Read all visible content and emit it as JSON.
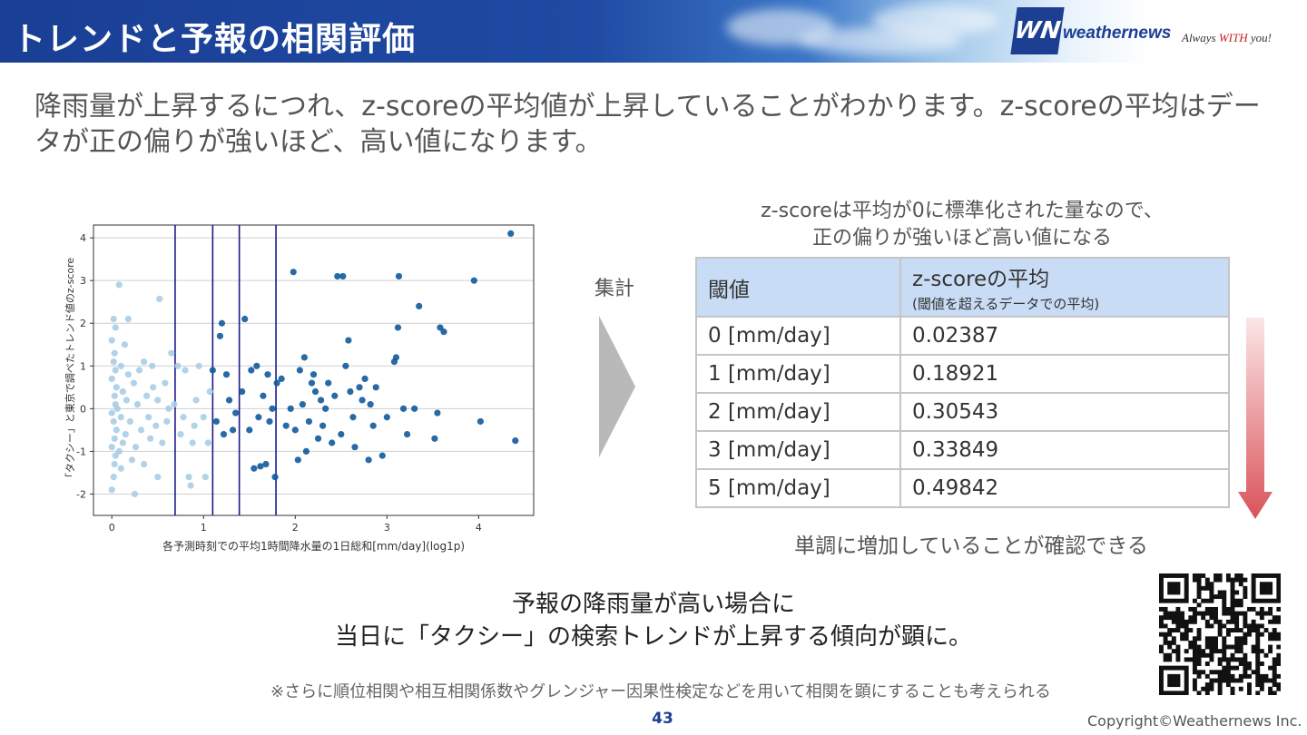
{
  "header": {
    "title": "トレンドと予報の相関評価",
    "logo_mark": "WN",
    "logo_text": "weathernews",
    "slogan_prefix": "Always ",
    "slogan_highlight": "WITH",
    "slogan_suffix": " you!"
  },
  "intro_text": "降雨量が上昇するにつれ、z-scoreの平均値が上昇していることがわかります。z-scoreの平均はデータが正の偏りが強いほど、高い値になります。",
  "summary_label": "集計",
  "table_note_line1": "z-scoreは平均が0に標準化された量なので、",
  "table_note_line2": "正の偏りが強いほど高い値になる",
  "table": {
    "header_threshold": "閾値",
    "header_mean": "z-scoreの平均",
    "header_mean_sub": "(閾値を超えるデータでの平均)",
    "rows": [
      {
        "threshold": "0 [mm/day]",
        "value": "0.02387"
      },
      {
        "threshold": "1 [mm/day]",
        "value": "0.18921"
      },
      {
        "threshold": "2 [mm/day]",
        "value": "0.30543"
      },
      {
        "threshold": "3 [mm/day]",
        "value": "0.33849"
      },
      {
        "threshold": "5 [mm/day]",
        "value": "0.49842"
      }
    ]
  },
  "conclusion": "単調に増加していることが確認できる",
  "key_message_line1": "予報の降雨量が高い場合に",
  "key_message_line2": "当日に「タクシー」の検索トレンドが上昇する傾向が顕に。",
  "footnote": "※さらに順位相関や相互相関係数やグレンジャー因果性検定などを用いて相関を顕にすることも考えられる",
  "page_number": "43",
  "copyright": "Copyright©Weathernews Inc.",
  "colors": {
    "header_blue": "#1c3f92",
    "light_point": "#a9cde6",
    "dark_point": "#0f5a9c",
    "threshold_line": "#1a1a8c",
    "table_header": "#c9dcf5"
  },
  "chart_data": {
    "type": "scatter",
    "xlabel": "各予測時刻での平均1時間降水量の1日総和[mm/day](log1p)",
    "ylabel": "「タクシー」と東京で調べたトレンド値のz-score",
    "xlim": [
      -0.2,
      4.6
    ],
    "ylim": [
      -2.5,
      4.3
    ],
    "x_ticks": [
      "0",
      "1",
      "2",
      "3",
      "4"
    ],
    "y_ticks": [
      "-2",
      "-1",
      "0",
      "1",
      "2",
      "3",
      "4"
    ],
    "grid": true,
    "threshold_lines": [
      0.69,
      1.1,
      1.39,
      1.79
    ],
    "series": [
      {
        "color": "light",
        "points": [
          [
            0.0,
            -1.9
          ],
          [
            0.02,
            -1.6
          ],
          [
            0.03,
            -1.3
          ],
          [
            0.04,
            -1.1
          ],
          [
            0.0,
            -0.9
          ],
          [
            0.03,
            -0.7
          ],
          [
            0.05,
            -0.5
          ],
          [
            0.02,
            -0.3
          ],
          [
            0.0,
            -0.1
          ],
          [
            0.04,
            0.1
          ],
          [
            0.03,
            0.3
          ],
          [
            0.05,
            0.5
          ],
          [
            0.0,
            0.7
          ],
          [
            0.04,
            0.9
          ],
          [
            0.02,
            1.1
          ],
          [
            0.03,
            1.3
          ],
          [
            0.0,
            1.6
          ],
          [
            0.04,
            1.9
          ],
          [
            0.02,
            2.1
          ],
          [
            0.08,
            2.9
          ],
          [
            0.1,
            -1.4
          ],
          [
            0.12,
            -0.8
          ],
          [
            0.1,
            -0.2
          ],
          [
            0.12,
            0.4
          ],
          [
            0.1,
            1.0
          ],
          [
            0.14,
            1.5
          ],
          [
            0.08,
            -1.0
          ],
          [
            0.06,
            0.0
          ],
          [
            0.15,
            -0.6
          ],
          [
            0.16,
            0.2
          ],
          [
            0.18,
            0.8
          ],
          [
            0.2,
            -0.3
          ],
          [
            0.22,
            -1.2
          ],
          [
            0.24,
            0.6
          ],
          [
            0.26,
            -0.9
          ],
          [
            0.28,
            0.1
          ],
          [
            0.3,
            0.9
          ],
          [
            0.32,
            -0.5
          ],
          [
            0.35,
            -1.3
          ],
          [
            0.38,
            0.3
          ],
          [
            0.4,
            -0.2
          ],
          [
            0.42,
            -0.7
          ],
          [
            0.45,
            0.5
          ],
          [
            0.48,
            -0.4
          ],
          [
            0.5,
            0.2
          ],
          [
            0.52,
            2.57
          ],
          [
            0.55,
            -0.8
          ],
          [
            0.58,
            0.6
          ],
          [
            0.6,
            -0.3
          ],
          [
            0.62,
            0.0
          ],
          [
            0.25,
            -2.0
          ],
          [
            0.18,
            2.1
          ],
          [
            0.35,
            1.1
          ],
          [
            0.44,
            1.0
          ],
          [
            0.5,
            -1.6
          ],
          [
            0.65,
            1.3
          ],
          [
            0.68,
            0.1
          ],
          [
            0.72,
            1.0
          ],
          [
            0.75,
            -0.6
          ],
          [
            0.78,
            -0.2
          ],
          [
            0.8,
            0.9
          ],
          [
            0.84,
            -1.6
          ],
          [
            0.86,
            -1.8
          ],
          [
            0.88,
            -0.8
          ],
          [
            0.9,
            -0.4
          ],
          [
            0.92,
            0.2
          ],
          [
            0.95,
            1.0
          ],
          [
            1.0,
            -0.2
          ],
          [
            1.02,
            -1.6
          ],
          [
            1.05,
            -0.8
          ],
          [
            1.07,
            0.4
          ]
        ]
      },
      {
        "color": "dark",
        "points": [
          [
            1.1,
            0.9
          ],
          [
            1.14,
            -0.3
          ],
          [
            1.18,
            1.7
          ],
          [
            1.2,
            2.0
          ],
          [
            1.22,
            -0.6
          ],
          [
            1.25,
            0.8
          ],
          [
            1.28,
            0.2
          ],
          [
            1.32,
            -0.5
          ],
          [
            1.35,
            -0.1
          ],
          [
            1.42,
            0.4
          ],
          [
            1.45,
            2.1
          ],
          [
            1.5,
            -0.5
          ],
          [
            1.52,
            0.9
          ],
          [
            1.55,
            -1.4
          ],
          [
            1.58,
            1.0
          ],
          [
            1.6,
            -0.2
          ],
          [
            1.62,
            -1.35
          ],
          [
            1.65,
            0.3
          ],
          [
            1.68,
            -1.3
          ],
          [
            1.7,
            0.8
          ],
          [
            1.72,
            -0.3
          ],
          [
            1.75,
            0.0
          ],
          [
            1.78,
            -1.6
          ],
          [
            1.8,
            0.6
          ],
          [
            1.85,
            0.7
          ],
          [
            1.9,
            -0.4
          ],
          [
            1.95,
            0.0
          ],
          [
            1.98,
            3.2
          ],
          [
            2.0,
            -0.5
          ],
          [
            2.03,
            -1.2
          ],
          [
            2.05,
            0.9
          ],
          [
            2.08,
            0.1
          ],
          [
            2.1,
            1.2
          ],
          [
            2.12,
            -1.0
          ],
          [
            2.15,
            -0.3
          ],
          [
            2.18,
            0.6
          ],
          [
            2.2,
            0.8
          ],
          [
            2.22,
            0.4
          ],
          [
            2.25,
            -0.7
          ],
          [
            2.28,
            0.2
          ],
          [
            2.3,
            -0.4
          ],
          [
            2.33,
            0.0
          ],
          [
            2.36,
            0.6
          ],
          [
            2.4,
            -0.8
          ],
          [
            2.43,
            0.3
          ],
          [
            2.46,
            3.1
          ],
          [
            2.5,
            -0.6
          ],
          [
            2.52,
            3.1
          ],
          [
            2.55,
            1.0
          ],
          [
            2.58,
            1.6
          ],
          [
            2.6,
            0.4
          ],
          [
            2.63,
            -0.2
          ],
          [
            2.65,
            -0.9
          ],
          [
            2.7,
            0.5
          ],
          [
            2.73,
            0.2
          ],
          [
            2.76,
            0.7
          ],
          [
            2.8,
            -1.2
          ],
          [
            2.82,
            0.1
          ],
          [
            2.85,
            -0.4
          ],
          [
            2.88,
            0.5
          ],
          [
            2.95,
            -1.1
          ],
          [
            3.0,
            -0.2
          ],
          [
            3.08,
            1.1
          ],
          [
            3.1,
            1.2
          ],
          [
            3.12,
            1.9
          ],
          [
            3.13,
            3.1
          ],
          [
            3.18,
            0.0
          ],
          [
            3.22,
            -0.6
          ],
          [
            3.3,
            0.0
          ],
          [
            3.35,
            2.4
          ],
          [
            3.52,
            -0.7
          ],
          [
            3.55,
            -0.1
          ],
          [
            3.58,
            1.9
          ],
          [
            3.62,
            1.8
          ],
          [
            3.95,
            3.0
          ],
          [
            4.02,
            -0.3
          ],
          [
            4.35,
            4.1
          ],
          [
            4.4,
            -0.75
          ]
        ]
      }
    ]
  }
}
